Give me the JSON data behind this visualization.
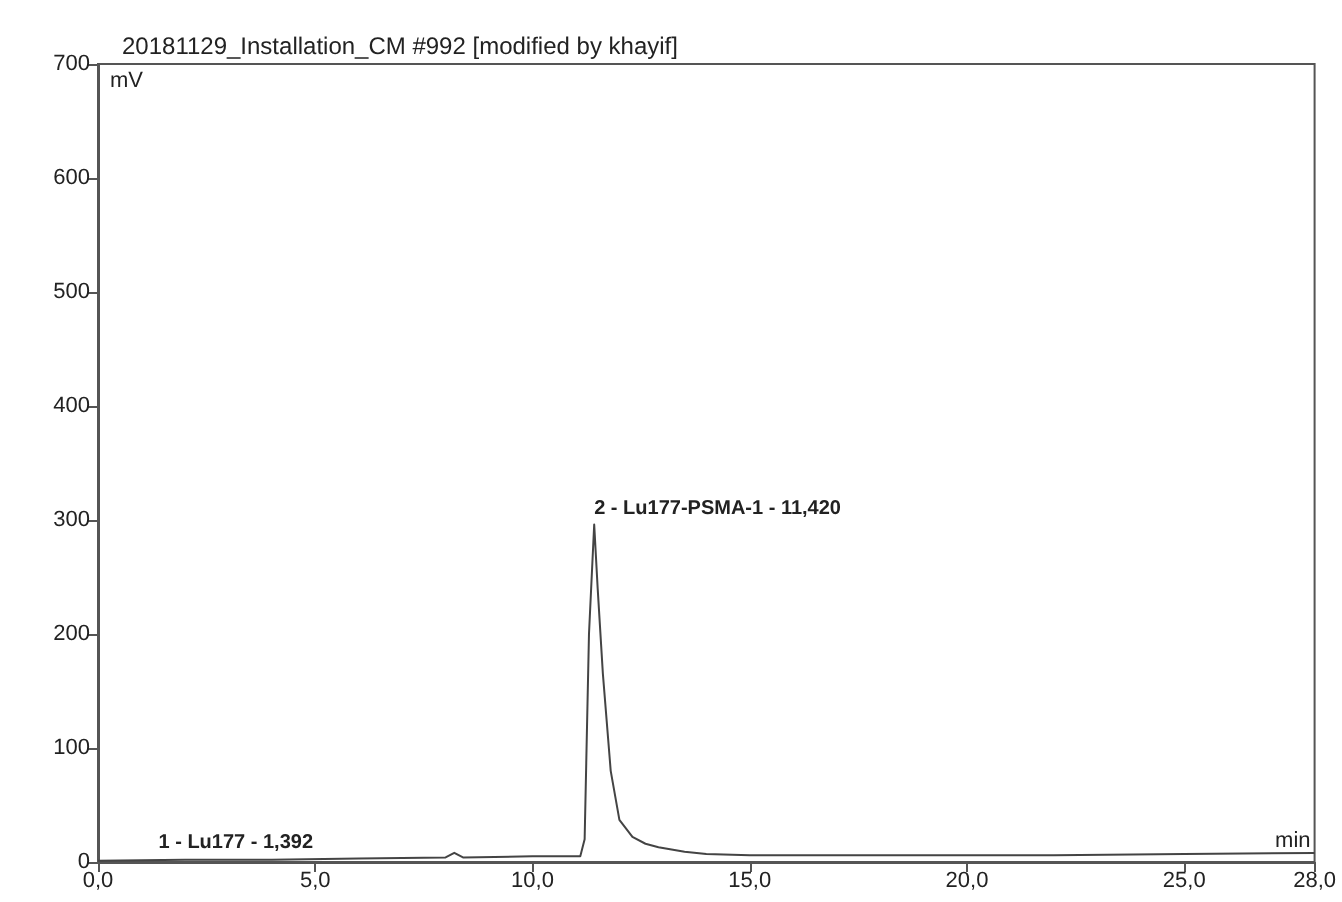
{
  "chart_data": {
    "type": "line",
    "title": "20181129_Installation_CM #992 [modified by khayif]",
    "xlabel": "min",
    "ylabel": "mV",
    "x": [
      0,
      2,
      4,
      6,
      8,
      8.2,
      8.4,
      10,
      11.1,
      11.2,
      11.3,
      11.42,
      11.5,
      11.62,
      11.8,
      12.0,
      12.3,
      12.6,
      12.9,
      13.5,
      14,
      15,
      18,
      20,
      22,
      25,
      28
    ],
    "series": [
      {
        "color": "#444444",
        "values": [
          1,
          2,
          2,
          3,
          4,
          8,
          4,
          5,
          5,
          20,
          200,
          296,
          240,
          165,
          80,
          37,
          22,
          16,
          13,
          9,
          7,
          6,
          6,
          6,
          6,
          7,
          8
        ]
      }
    ],
    "xlim": [
      0,
      28
    ],
    "xticks": [
      {
        "value": 0,
        "label": "0,0"
      },
      {
        "value": 5,
        "label": "5,0"
      },
      {
        "value": 10,
        "label": "10,0"
      },
      {
        "value": 15,
        "label": "15,0"
      },
      {
        "value": 20,
        "label": "20,0"
      },
      {
        "value": 25,
        "label": "25,0"
      },
      {
        "value": 28,
        "label": "28,0"
      }
    ],
    "ylim": [
      0,
      700
    ],
    "yticks": [
      0,
      100,
      200,
      300,
      400,
      500,
      600,
      700
    ],
    "annotations": [
      {
        "text": "1 - Lu177 - 1,392",
        "x": 1.392,
        "y": 3
      },
      {
        "text": "2 - Lu177-PSMA-1 - 11,420",
        "x": 11.42,
        "y": 296
      }
    ],
    "grid": false,
    "marker": "none",
    "line_style": "solid"
  }
}
